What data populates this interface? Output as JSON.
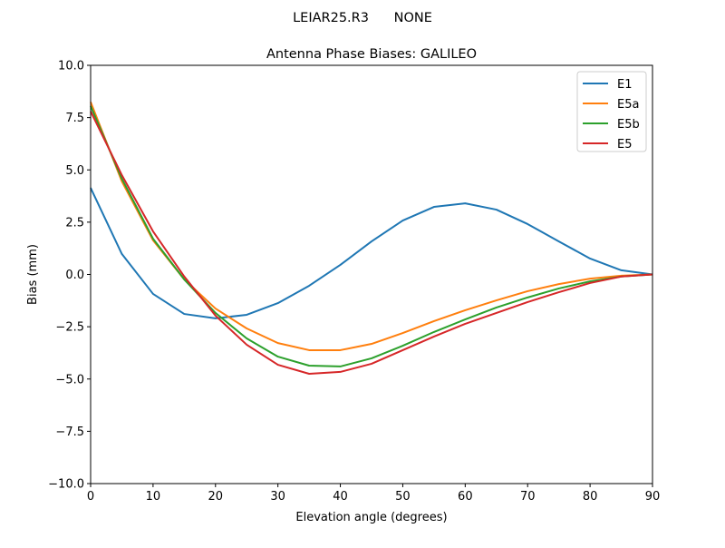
{
  "chart_data": {
    "type": "line",
    "suptitle": "LEIAR25.R3      NONE",
    "title": "Antenna Phase Biases: GALILEO",
    "xlabel": "Elevation angle (degrees)",
    "ylabel": "Bias (mm)",
    "xlim": [
      0,
      90
    ],
    "ylim": [
      -10,
      10
    ],
    "xticks": [
      0,
      10,
      20,
      30,
      40,
      50,
      60,
      70,
      80,
      90
    ],
    "xtick_labels": [
      "0",
      "10",
      "20",
      "30",
      "40",
      "50",
      "60",
      "70",
      "80",
      "90"
    ],
    "yticks": [
      -10,
      -7.5,
      -5,
      -2.5,
      0,
      2.5,
      5,
      7.5,
      10
    ],
    "ytick_labels": [
      "−10.0",
      "−7.5",
      "−5.0",
      "−2.5",
      "0.0",
      "2.5",
      "5.0",
      "7.5",
      "10.0"
    ],
    "grid": false,
    "legend_position": "top-right",
    "x": [
      0,
      5,
      10,
      15,
      20,
      25,
      30,
      35,
      40,
      45,
      50,
      55,
      60,
      65,
      70,
      75,
      80,
      85,
      90
    ],
    "series": [
      {
        "name": "E1",
        "color": "#1f77b4",
        "values": [
          4.14,
          0.98,
          -0.93,
          -1.89,
          -2.1,
          -1.93,
          -1.37,
          -0.54,
          0.46,
          1.58,
          2.58,
          3.23,
          3.4,
          3.1,
          2.41,
          1.58,
          0.76,
          0.2,
          0.0
        ]
      },
      {
        "name": "E5a",
        "color": "#ff7f0e",
        "values": [
          8.25,
          4.45,
          1.63,
          -0.24,
          -1.63,
          -2.58,
          -3.28,
          -3.62,
          -3.62,
          -3.32,
          -2.8,
          -2.23,
          -1.71,
          -1.24,
          -0.8,
          -0.46,
          -0.2,
          -0.06,
          0.0
        ]
      },
      {
        "name": "E5b",
        "color": "#2ca02c",
        "values": [
          8.05,
          4.58,
          1.71,
          -0.24,
          -1.84,
          -3.06,
          -3.93,
          -4.36,
          -4.4,
          -4.01,
          -3.41,
          -2.75,
          -2.15,
          -1.58,
          -1.1,
          -0.67,
          -0.33,
          -0.1,
          0.0
        ]
      },
      {
        "name": "E5",
        "color": "#d62728",
        "values": [
          7.8,
          4.75,
          2.06,
          -0.1,
          -1.97,
          -3.36,
          -4.32,
          -4.75,
          -4.66,
          -4.27,
          -3.62,
          -2.97,
          -2.36,
          -1.84,
          -1.32,
          -0.85,
          -0.41,
          -0.1,
          0.0
        ]
      }
    ]
  }
}
